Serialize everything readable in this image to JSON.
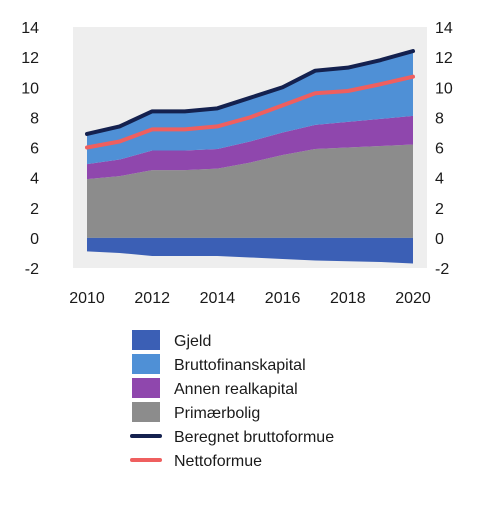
{
  "chart_data": {
    "type": "area",
    "x": [
      2010,
      2011,
      2012,
      2013,
      2014,
      2015,
      2016,
      2017,
      2018,
      2019,
      2020
    ],
    "x_ticks": [
      2010,
      2012,
      2014,
      2016,
      2018,
      2020
    ],
    "y_ticks": [
      -2,
      0,
      2,
      4,
      6,
      8,
      10,
      12,
      14
    ],
    "ylim": [
      -2,
      14
    ],
    "xlim": [
      2010,
      2020
    ],
    "grid": false,
    "legend_position": "bottom",
    "stacked_positive_series": [
      {
        "name": "Primærbolig",
        "color": "#8c8c8c",
        "values": [
          3.9,
          4.1,
          4.5,
          4.5,
          4.6,
          5.0,
          5.5,
          5.9,
          6.0,
          6.1,
          6.2
        ]
      },
      {
        "name": "Annen realkapital",
        "color": "#8f47ad",
        "values": [
          1.0,
          1.1,
          1.3,
          1.3,
          1.3,
          1.4,
          1.5,
          1.6,
          1.7,
          1.8,
          1.9
        ]
      },
      {
        "name": "Bruttofinanskapital",
        "color": "#4f90d6",
        "values": [
          2.0,
          2.2,
          2.6,
          2.6,
          2.7,
          2.9,
          3.0,
          3.6,
          3.6,
          3.9,
          4.3
        ]
      }
    ],
    "negative_series": [
      {
        "name": "Gjeld",
        "color": "#3b5fb5",
        "values": [
          -0.9,
          -1.0,
          -1.2,
          -1.2,
          -1.2,
          -1.3,
          -1.4,
          -1.5,
          -1.55,
          -1.6,
          -1.7
        ]
      }
    ],
    "line_series": [
      {
        "name": "Beregnet bruttoformue",
        "color": "#14214f",
        "values": [
          6.9,
          7.4,
          8.4,
          8.4,
          8.6,
          9.3,
          10.0,
          11.1,
          11.3,
          11.8,
          12.4
        ]
      },
      {
        "name": "Nettoformue",
        "color": "#ef5f5f",
        "values": [
          6.0,
          6.4,
          7.2,
          7.2,
          7.4,
          8.0,
          8.8,
          9.6,
          9.75,
          10.2,
          10.7
        ]
      }
    ],
    "legend": [
      {
        "label": "Gjeld",
        "kind": "box",
        "color": "#3b5fb5"
      },
      {
        "label": "Bruttofinanskapital",
        "kind": "box",
        "color": "#4f90d6"
      },
      {
        "label": "Annen realkapital",
        "kind": "box",
        "color": "#8f47ad"
      },
      {
        "label": "Primærbolig",
        "kind": "box",
        "color": "#8c8c8c"
      },
      {
        "label": "Beregnet bruttoformue",
        "kind": "line",
        "color": "#14214f"
      },
      {
        "label": "Nettoformue",
        "kind": "line",
        "color": "#ef5f5f"
      }
    ],
    "title": "",
    "xlabel": "",
    "ylabel": ""
  }
}
